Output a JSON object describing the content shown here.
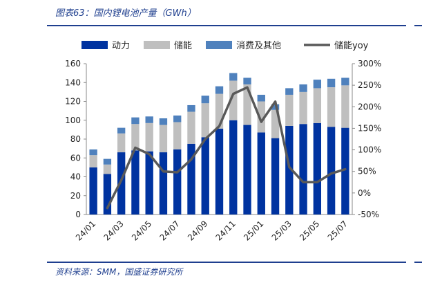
{
  "title": "图表63：国内锂电池产量（GWh）",
  "source": "资料来源：SMM，国盛证券研究所",
  "colors": {
    "power": "#0033a0",
    "storage": "#bfbfbf",
    "consumer": "#4f81bd",
    "yoy": "#595959",
    "text_blue": "#1f3f8f"
  },
  "chart_data": {
    "type": "bar",
    "stacked": true,
    "categories": [
      "24/01",
      "24/02",
      "24/03",
      "24/04",
      "24/05",
      "24/06",
      "24/07",
      "24/08",
      "24/09",
      "24/10",
      "24/11",
      "24/12",
      "25/01",
      "25/02",
      "25/03",
      "25/04",
      "25/05",
      "25/06",
      "25/07"
    ],
    "x_tick_labels": [
      "24/01",
      "24/03",
      "24/05",
      "24/07",
      "24/09",
      "24/11",
      "25/01",
      "25/03",
      "25/05",
      "25/07"
    ],
    "series": [
      {
        "name": "动力",
        "axis": "left",
        "values": [
          50,
          43,
          66,
          68,
          67,
          66,
          69,
          75,
          82,
          91,
          100,
          95,
          87,
          81,
          94,
          96,
          97,
          93,
          92
        ]
      },
      {
        "name": "储能",
        "axis": "left",
        "values": [
          13,
          10,
          20,
          28,
          30,
          29,
          29,
          34,
          36,
          37,
          42,
          43,
          33,
          30,
          33,
          34,
          37,
          42,
          45
        ]
      },
      {
        "name": "消费及其他",
        "axis": "left",
        "values": [
          6,
          6,
          6,
          7,
          7,
          7,
          7,
          7,
          8,
          8,
          8,
          7,
          7,
          6,
          7,
          8,
          9,
          9,
          8
        ]
      },
      {
        "name": "储能yoy",
        "type": "line",
        "axis": "right",
        "values": [
          null,
          -35,
          30,
          105,
          90,
          50,
          48,
          78,
          125,
          155,
          230,
          245,
          165,
          212,
          60,
          25,
          25,
          45,
          55
        ]
      }
    ],
    "ylim": [
      0,
      160
    ],
    "y_ticks": [
      0,
      20,
      40,
      60,
      80,
      100,
      120,
      140,
      160
    ],
    "y2lim": [
      -50,
      300
    ],
    "y2_ticks": [
      "-50%",
      "0%",
      "50%",
      "100%",
      "150%",
      "200%",
      "250%",
      "300%"
    ],
    "y2_tick_values": [
      -50,
      0,
      50,
      100,
      150,
      200,
      250,
      300
    ],
    "legend_position": "top",
    "grid": false
  }
}
